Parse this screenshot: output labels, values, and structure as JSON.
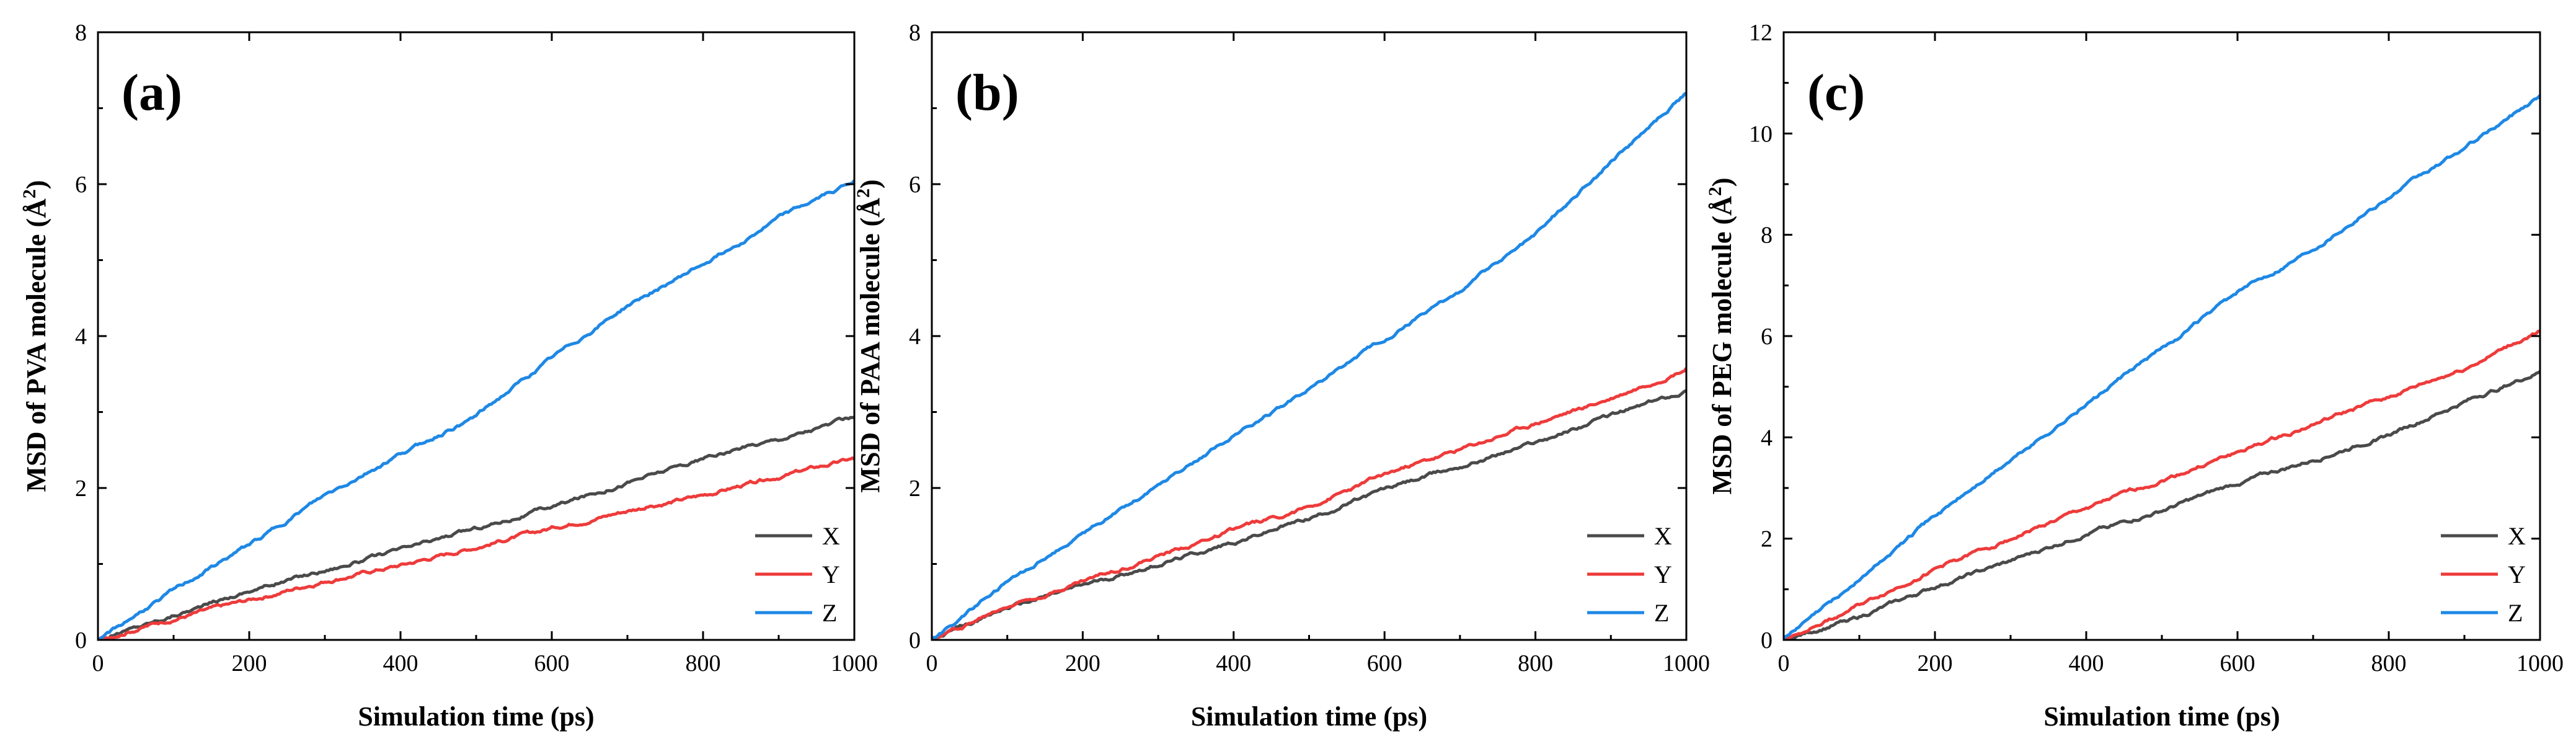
{
  "chart_data": [
    {
      "type": "line",
      "panel_label": "(a)",
      "xlabel": "Simulation time (ps)",
      "ylabel_prefix": "MSD of PVA molecule (",
      "ylabel_unit": "Å",
      "ylabel_exp": "2",
      "ylabel_suffix": ")",
      "xlim": [
        0,
        1000
      ],
      "ylim": [
        0,
        8
      ],
      "xticks": [
        "0",
        "200",
        "400",
        "600",
        "800",
        "1000"
      ],
      "yticks": [
        "0",
        "2",
        "4",
        "6",
        "8"
      ],
      "legend_position": "bottom-right",
      "series": [
        {
          "name": "X",
          "color": "#4a4a4a",
          "x": [
            0,
            100,
            200,
            300,
            400,
            500,
            600,
            700,
            800,
            900,
            1000
          ],
          "y": [
            0,
            0.33,
            0.65,
            0.92,
            1.18,
            1.47,
            1.75,
            2.08,
            2.38,
            2.65,
            2.93
          ]
        },
        {
          "name": "Y",
          "color": "#ee3b3b",
          "x": [
            0,
            100,
            200,
            300,
            400,
            500,
            600,
            700,
            800,
            900,
            1000
          ],
          "y": [
            0,
            0.28,
            0.52,
            0.78,
            0.98,
            1.22,
            1.47,
            1.7,
            1.9,
            2.15,
            2.38
          ]
        },
        {
          "name": "Z",
          "color": "#1e88e5",
          "x": [
            0,
            100,
            200,
            300,
            400,
            500,
            600,
            700,
            800,
            900,
            1000
          ],
          "y": [
            0,
            0.65,
            1.25,
            1.9,
            2.45,
            2.95,
            3.7,
            4.4,
            4.95,
            5.55,
            6.05
          ]
        }
      ]
    },
    {
      "type": "line",
      "panel_label": "(b)",
      "xlabel": "Simulation time (ps)",
      "ylabel_prefix": "MSD of PAA molecule (",
      "ylabel_unit": "Å",
      "ylabel_exp": "2",
      "ylabel_suffix": ")",
      "xlim": [
        0,
        1000
      ],
      "ylim": [
        0,
        8
      ],
      "xticks": [
        "0",
        "200",
        "400",
        "600",
        "800",
        "1000"
      ],
      "yticks": [
        "0",
        "2",
        "4",
        "6",
        "8"
      ],
      "legend_position": "bottom-right",
      "series": [
        {
          "name": "X",
          "color": "#4a4a4a",
          "x": [
            0,
            100,
            200,
            300,
            400,
            500,
            600,
            700,
            800,
            900,
            1000
          ],
          "y": [
            0,
            0.42,
            0.72,
            1.0,
            1.28,
            1.6,
            1.98,
            2.28,
            2.6,
            2.95,
            3.28
          ]
        },
        {
          "name": "Y",
          "color": "#ee3b3b",
          "x": [
            0,
            100,
            200,
            300,
            400,
            500,
            600,
            700,
            800,
            900,
            1000
          ],
          "y": [
            0,
            0.45,
            0.78,
            1.1,
            1.45,
            1.75,
            2.18,
            2.5,
            2.85,
            3.18,
            3.58
          ]
        },
        {
          "name": "Z",
          "color": "#1e88e5",
          "x": [
            0,
            100,
            200,
            300,
            400,
            500,
            600,
            700,
            800,
            900,
            1000
          ],
          "y": [
            0,
            0.75,
            1.4,
            2.05,
            2.7,
            3.3,
            3.95,
            4.6,
            5.35,
            6.3,
            7.2
          ]
        }
      ]
    },
    {
      "type": "line",
      "panel_label": "(c)",
      "xlabel": "Simulation time (ps)",
      "ylabel_prefix": "MSD of PEG molecule (",
      "ylabel_unit": "Å",
      "ylabel_exp": "2",
      "ylabel_suffix": ")",
      "xlim": [
        0,
        1000
      ],
      "ylim": [
        0,
        12
      ],
      "xticks": [
        "0",
        "200",
        "400",
        "600",
        "800",
        "1000"
      ],
      "yticks": [
        "0",
        "2",
        "4",
        "6",
        "8",
        "10",
        "12"
      ],
      "legend_position": "bottom-right",
      "series": [
        {
          "name": "X",
          "color": "#4a4a4a",
          "x": [
            0,
            100,
            200,
            300,
            400,
            500,
            600,
            700,
            800,
            900,
            1000
          ],
          "y": [
            0,
            0.45,
            1.05,
            1.55,
            2.1,
            2.55,
            3.1,
            3.55,
            4.05,
            4.7,
            5.3
          ]
        },
        {
          "name": "Y",
          "color": "#ee3b3b",
          "x": [
            0,
            100,
            200,
            300,
            400,
            500,
            600,
            700,
            800,
            900,
            1000
          ],
          "y": [
            0,
            0.68,
            1.4,
            2.0,
            2.6,
            3.15,
            3.7,
            4.25,
            4.8,
            5.35,
            6.1
          ]
        },
        {
          "name": "Z",
          "color": "#1e88e5",
          "x": [
            0,
            100,
            200,
            300,
            400,
            500,
            600,
            700,
            800,
            900,
            1000
          ],
          "y": [
            0,
            1.2,
            2.45,
            3.55,
            4.65,
            5.75,
            6.85,
            7.75,
            8.75,
            9.7,
            10.75
          ]
        }
      ]
    }
  ]
}
